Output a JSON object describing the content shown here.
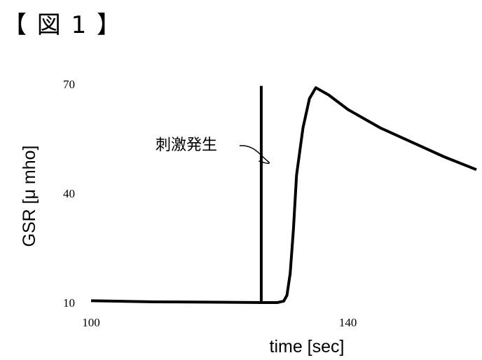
{
  "figure_title": "【 図 1 】",
  "chart_data": {
    "type": "line",
    "title": "",
    "xlabel": "time [sec]",
    "ylabel": "GSR [μ mho]",
    "xlim": [
      100,
      160
    ],
    "ylim": [
      10,
      70
    ],
    "x_ticks": [
      {
        "value": 100,
        "label": "100"
      },
      {
        "value": 140,
        "label": "140"
      }
    ],
    "y_ticks": [
      {
        "value": 70,
        "label": "70"
      },
      {
        "value": 40,
        "label": "40"
      },
      {
        "value": 10,
        "label": "10"
      }
    ],
    "grid": false,
    "series": [
      {
        "x": [
          100,
          110,
          120,
          127,
          129,
          130,
          130.5,
          131,
          131.5,
          132,
          133,
          134,
          135,
          137,
          140,
          145,
          150,
          155,
          160
        ],
        "y": [
          10.5,
          10.2,
          10.1,
          10,
          10,
          10.4,
          12,
          18,
          30,
          45,
          58,
          66,
          69,
          67,
          63,
          58,
          54,
          50,
          46.5
        ]
      }
    ],
    "stimulus": {
      "x": 126.5,
      "y_top": 69.5,
      "y_bottom": 10
    },
    "annotations": [
      {
        "text": "刺激発生",
        "points_to": {
          "x": 126.5,
          "y": 48
        }
      }
    ]
  }
}
